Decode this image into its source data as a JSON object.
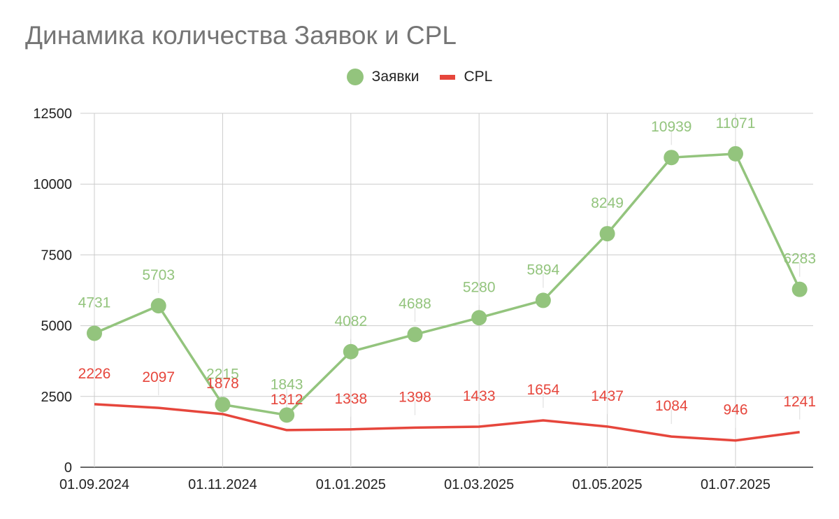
{
  "chart_data": {
    "type": "line",
    "title": "Динамика количества Заявок и CPL",
    "xlabel": "",
    "ylabel": "",
    "ylim": [
      0,
      12500
    ],
    "yticks": [
      0,
      2500,
      5000,
      7500,
      10000,
      12500
    ],
    "x": [
      "01.09.2024",
      "01.10.2024",
      "01.11.2024",
      "01.12.2024",
      "01.01.2025",
      "01.02.2025",
      "01.03.2025",
      "01.04.2025",
      "01.05.2025",
      "01.06.2025",
      "01.07.2025",
      "01.08.2025"
    ],
    "x_tick_labels": [
      "01.09.2024",
      "01.11.2024",
      "01.01.2025",
      "01.03.2025",
      "01.05.2025",
      "01.07.2025"
    ],
    "legend_position": "top-center",
    "grid": true,
    "series": [
      {
        "name": "Заявки",
        "color": "#93c47d",
        "marker": "circle",
        "values": [
          4731,
          5703,
          2215,
          1843,
          4082,
          4688,
          5280,
          5894,
          8249,
          10939,
          11071,
          6283
        ]
      },
      {
        "name": "CPL",
        "color": "#e6463c",
        "marker": "none",
        "values": [
          2226,
          2097,
          1878,
          1312,
          1338,
          1398,
          1433,
          1654,
          1437,
          1084,
          946,
          1241
        ]
      }
    ]
  }
}
